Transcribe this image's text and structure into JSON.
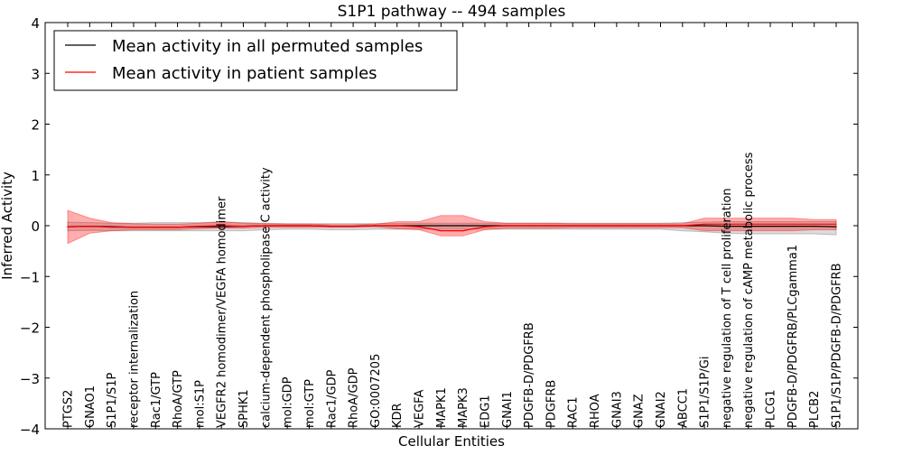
{
  "chart_data": {
    "type": "line",
    "title": "S1P1 pathway -- 494 samples",
    "xlabel": "Cellular Entities",
    "ylabel": "Inferred Activity",
    "ylim": [
      -4,
      4
    ],
    "yticks": [
      -4,
      -3,
      -2,
      -1,
      0,
      1,
      2,
      3,
      4
    ],
    "ytick_labels": [
      "−4",
      "−3",
      "−2",
      "−1",
      "0",
      "1",
      "2",
      "3",
      "4"
    ],
    "legend_position": "top-left",
    "categories": [
      "PTGS2",
      "GNAO1",
      "S1P1/S1P",
      "receptor internalization",
      "Rac1/GTP",
      "RhoA/GTP",
      "mol:S1P",
      "VEGFR2 homodimer/VEGFA homodimer",
      "SPHK1",
      "calcium-dependent phospholipase C activity",
      "mol:GDP",
      "mol:GTP",
      "Rac1/GDP",
      "RhoA/GDP",
      "GO:0007205",
      "KDR",
      "VEGFA",
      "MAPK1",
      "MAPK3",
      "EDG1",
      "GNAI1",
      "PDGFB-D/PDGFRB",
      "PDGFRB",
      "RAC1",
      "RHOA",
      "GNAI3",
      "GNAZ",
      "GNAI2",
      "ABCC1",
      "S1P1/S1P/Gi",
      "negative regulation of T cell proliferation",
      "negative regulation of cAMP metabolic process",
      "PLCG1",
      "PDGFB-D/PDGFRB/PLCgamma1",
      "PLCB2",
      "S1P1/S1P/PDGFB-D/PDGFRB"
    ],
    "series": [
      {
        "name": "Mean activity in all permuted samples",
        "color": "#000000",
        "values": [
          -0.02,
          -0.01,
          -0.02,
          -0.03,
          -0.03,
          -0.03,
          -0.02,
          -0.02,
          -0.01,
          0.0,
          0.0,
          0.0,
          -0.01,
          -0.01,
          0.0,
          0.0,
          0.0,
          0.0,
          0.0,
          0.0,
          0.0,
          0.0,
          0.0,
          0.0,
          0.0,
          0.0,
          0.0,
          0.0,
          0.0,
          0.0,
          -0.01,
          -0.01,
          -0.01,
          -0.01,
          -0.01,
          -0.02
        ],
        "band_upper": [
          0.07,
          0.06,
          0.05,
          0.05,
          0.06,
          0.06,
          0.06,
          0.07,
          0.06,
          0.05,
          0.04,
          0.04,
          0.04,
          0.04,
          0.04,
          0.05,
          0.05,
          0.05,
          0.05,
          0.05,
          0.05,
          0.05,
          0.05,
          0.05,
          0.05,
          0.05,
          0.05,
          0.05,
          0.06,
          0.07,
          0.08,
          0.08,
          0.08,
          0.08,
          0.08,
          0.08
        ],
        "band_lower": [
          -0.1,
          -0.09,
          -0.1,
          -0.1,
          -0.1,
          -0.1,
          -0.1,
          -0.1,
          -0.1,
          -0.08,
          -0.07,
          -0.07,
          -0.08,
          -0.08,
          -0.07,
          -0.07,
          -0.07,
          -0.07,
          -0.07,
          -0.07,
          -0.07,
          -0.07,
          -0.07,
          -0.07,
          -0.07,
          -0.07,
          -0.07,
          -0.07,
          -0.1,
          -0.12,
          -0.15,
          -0.16,
          -0.16,
          -0.16,
          -0.16,
          -0.18
        ]
      },
      {
        "name": "Mean activity in patient samples",
        "color": "#ff0000",
        "values": [
          -0.02,
          -0.01,
          -0.03,
          -0.03,
          -0.03,
          -0.03,
          -0.01,
          0.0,
          -0.01,
          0.0,
          0.0,
          0.0,
          -0.01,
          -0.01,
          0.0,
          0.0,
          -0.02,
          -0.1,
          -0.1,
          -0.02,
          0.0,
          0.0,
          0.0,
          0.0,
          0.0,
          0.0,
          0.0,
          0.0,
          0.0,
          0.03,
          0.03,
          0.03,
          0.03,
          0.03,
          0.03,
          0.03
        ],
        "band_upper": [
          0.3,
          0.15,
          0.06,
          0.04,
          0.03,
          0.03,
          0.05,
          0.08,
          0.05,
          0.04,
          0.03,
          0.03,
          0.02,
          0.02,
          0.03,
          0.08,
          0.08,
          0.2,
          0.2,
          0.08,
          0.05,
          0.05,
          0.05,
          0.04,
          0.04,
          0.04,
          0.04,
          0.04,
          0.04,
          0.15,
          0.15,
          0.15,
          0.15,
          0.15,
          0.12,
          0.12
        ],
        "band_lower": [
          -0.35,
          -0.15,
          -0.1,
          -0.08,
          -0.08,
          -0.08,
          -0.06,
          -0.05,
          -0.05,
          -0.03,
          -0.03,
          -0.03,
          -0.03,
          -0.03,
          -0.02,
          -0.06,
          -0.08,
          -0.2,
          -0.2,
          -0.08,
          -0.05,
          -0.05,
          -0.05,
          -0.04,
          -0.04,
          -0.04,
          -0.04,
          -0.04,
          -0.04,
          -0.1,
          -0.1,
          -0.1,
          -0.1,
          -0.1,
          -0.08,
          -0.08
        ]
      }
    ]
  }
}
